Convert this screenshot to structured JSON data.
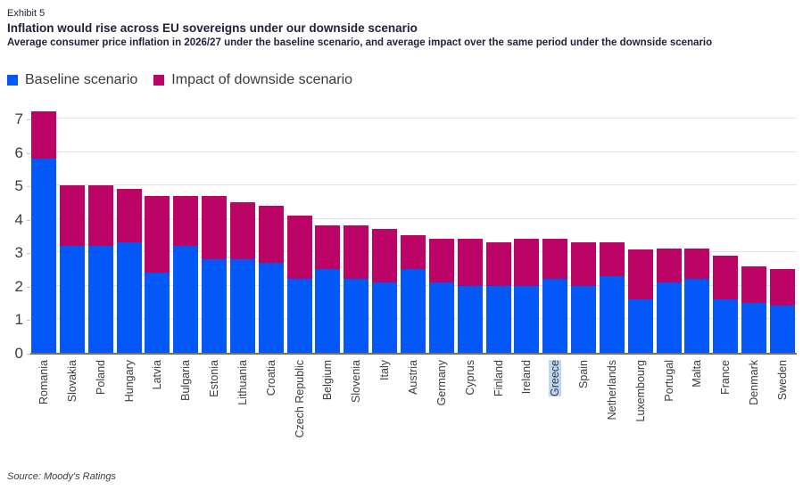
{
  "header": {
    "exhibit_label": "Exhibit 5",
    "title": "Inflation would rise across EU sovereigns under our downside scenario",
    "subtitle": "Average consumer price inflation in 2026/27 under the baseline scenario, and average impact over the same period under the downside scenario"
  },
  "legend": [
    {
      "label": "Baseline scenario",
      "color": "#0558f8"
    },
    {
      "label": "Impact of downside scenario",
      "color": "#bc0366"
    }
  ],
  "footer": {
    "source": "Source: Moody's Ratings"
  },
  "colors": {
    "baseline_blue": "#0558f8",
    "impact_magenta": "#bc0366",
    "gridline": "#e3e3e3",
    "axis_line": "#6e6e6e",
    "highlight_selection": "#bdd7f2"
  },
  "chart_data": {
    "type": "bar",
    "stacked": true,
    "grid": "horizontal",
    "legend_position": "top-left",
    "ylim": [
      0,
      7.25
    ],
    "yticks": [
      0,
      1,
      2,
      3,
      4,
      5,
      6,
      7
    ],
    "highlighted_category": "Greece",
    "categories": [
      "Romania",
      "Slovakia",
      "Poland",
      "Hungary",
      "Latvia",
      "Bulgaria",
      "Estonia",
      "Lithuania",
      "Croatia",
      "Czech Republic",
      "Belgium",
      "Slovenia",
      "Italy",
      "Austria",
      "Germany",
      "Cyprus",
      "Finland",
      "Ireland",
      "Greece",
      "Spain",
      "Netherlands",
      "Luxembourg",
      "Portugal",
      "Malta",
      "France",
      "Denmark",
      "Sweden"
    ],
    "series": [
      {
        "name": "Baseline scenario",
        "color": "#0558f8",
        "values": [
          5.8,
          3.2,
          3.2,
          3.3,
          2.4,
          3.2,
          2.8,
          2.8,
          2.7,
          2.2,
          2.5,
          2.2,
          2.1,
          2.5,
          2.1,
          2.0,
          2.0,
          2.0,
          2.2,
          2.0,
          2.3,
          1.6,
          2.1,
          2.2,
          1.6,
          1.5,
          1.4
        ]
      },
      {
        "name": "Impact of downside scenario",
        "color": "#bc0366",
        "values": [
          1.4,
          1.8,
          1.8,
          1.6,
          2.3,
          1.5,
          1.9,
          1.7,
          1.7,
          1.9,
          1.3,
          1.6,
          1.6,
          1.0,
          1.3,
          1.4,
          1.3,
          1.4,
          1.2,
          1.3,
          1.0,
          1.5,
          1.0,
          0.9,
          1.3,
          1.1,
          1.1
        ]
      }
    ],
    "totals": [
      7.2,
      5.0,
      5.0,
      4.9,
      4.7,
      4.7,
      4.7,
      4.5,
      4.4,
      4.1,
      3.8,
      3.8,
      3.7,
      3.5,
      3.4,
      3.4,
      3.3,
      3.4,
      3.4,
      3.3,
      3.3,
      3.1,
      3.1,
      3.1,
      2.9,
      2.6,
      2.5
    ]
  }
}
